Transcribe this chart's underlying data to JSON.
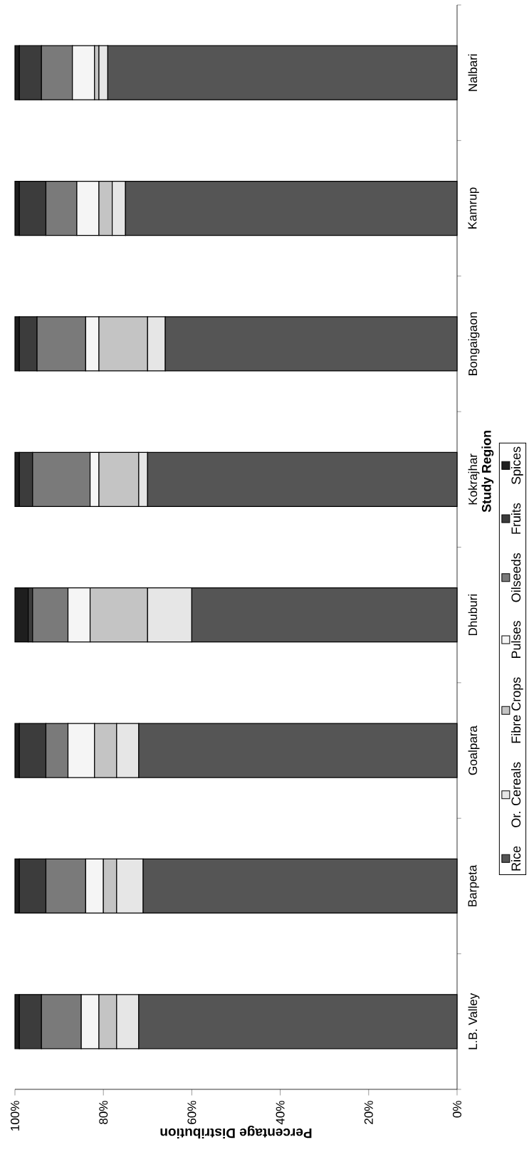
{
  "chart_data": {
    "type": "bar",
    "stacked": true,
    "orientation": "horizontal",
    "xlabel": "Percentage Distribution",
    "ylabel": "Study Region",
    "categories": [
      "Nalbari",
      "Kamrup",
      "Bongaigaon",
      "Kokrajhar",
      "Dhuburi",
      "Goalpara",
      "Barpeta",
      "L.B. Valley"
    ],
    "series": [
      {
        "name": "Rice",
        "color": "#555555",
        "values": [
          79,
          75,
          66,
          70,
          60,
          72,
          71,
          72
        ]
      },
      {
        "name": "Or. Cereals",
        "color": "#e6e6e6",
        "values": [
          2,
          3,
          4,
          2,
          10,
          5,
          6,
          5
        ]
      },
      {
        "name": "Fibre Crops",
        "color": "#c4c4c4",
        "values": [
          1,
          3,
          11,
          9,
          13,
          5,
          3,
          4
        ]
      },
      {
        "name": "Pulses",
        "color": "#f5f5f5",
        "values": [
          5,
          5,
          3,
          2,
          5,
          6,
          4,
          4
        ]
      },
      {
        "name": "Oilseeds",
        "color": "#7a7a7a",
        "values": [
          7,
          7,
          11,
          13,
          8,
          5,
          9,
          9
        ]
      },
      {
        "name": "Fruits",
        "color": "#3c3c3c",
        "values": [
          5,
          6,
          4,
          3,
          1,
          6,
          6,
          5
        ]
      },
      {
        "name": "Spices",
        "color": "#1e1e1e",
        "values": [
          1,
          1,
          1,
          1,
          3,
          1,
          1,
          1
        ]
      }
    ],
    "xlim": [
      100,
      0
    ],
    "xticks": [
      {
        "value": 0,
        "label": "0%"
      },
      {
        "value": 20,
        "label": "20%"
      },
      {
        "value": 40,
        "label": "40%"
      },
      {
        "value": 60,
        "label": "60%"
      },
      {
        "value": 80,
        "label": "80%"
      },
      {
        "value": 100,
        "label": "100%"
      }
    ],
    "legend": "right"
  }
}
